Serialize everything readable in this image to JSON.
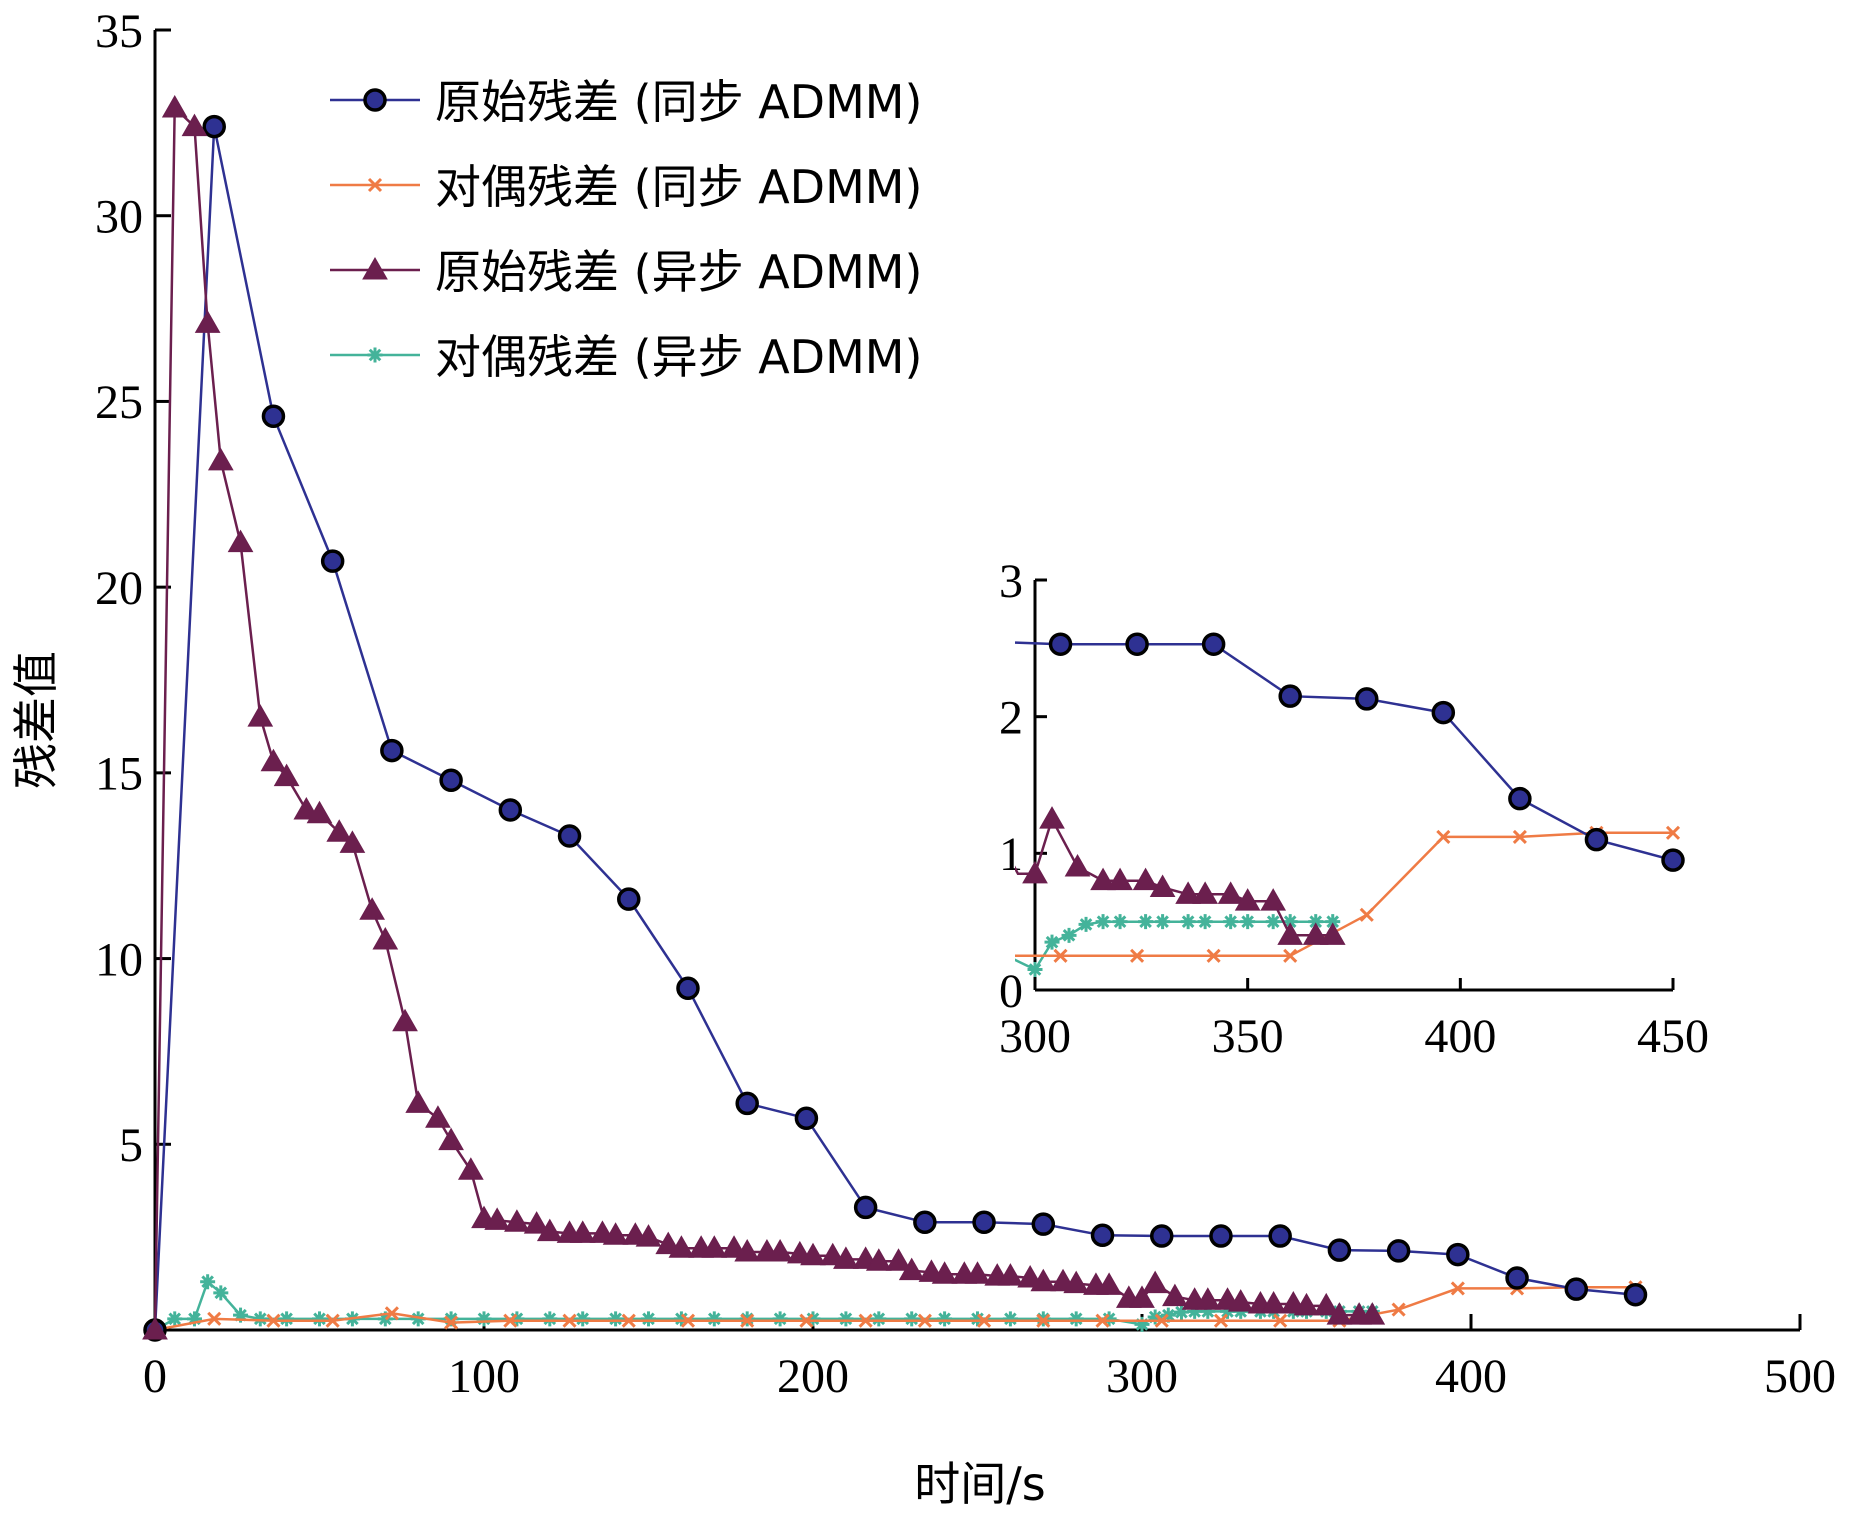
{
  "chart_data": [
    {
      "type": "line",
      "xlabel": "时间/s",
      "ylabel": "残差值",
      "xlim": [
        0,
        500
      ],
      "ylim": [
        0,
        35
      ],
      "xticks": [
        "0",
        "100",
        "200",
        "300",
        "400",
        "500"
      ],
      "yticks": [
        "5",
        "10",
        "15",
        "20",
        "25",
        "30",
        "35"
      ],
      "legend_position": "top-center",
      "series": [
        {
          "name": "原始残差 (同步 ADMM)",
          "color": "#2e3192",
          "marker": "circle",
          "x": [
            0,
            18,
            36,
            54,
            72,
            90,
            108,
            126,
            144,
            162,
            180,
            198,
            216,
            234,
            252,
            270,
            288,
            306,
            324,
            342,
            360,
            378,
            396,
            414,
            432,
            450
          ],
          "y": [
            0,
            32.4,
            24.6,
            20.7,
            15.6,
            14.8,
            14.0,
            13.3,
            11.6,
            9.2,
            6.1,
            5.7,
            3.3,
            2.9,
            2.9,
            2.85,
            2.55,
            2.53,
            2.53,
            2.53,
            2.15,
            2.13,
            2.03,
            1.4,
            1.1,
            0.95
          ]
        },
        {
          "name": "对偶残差 (同步 ADMM)",
          "color": "#ef7b45",
          "marker": "x",
          "x": [
            0,
            18,
            36,
            54,
            72,
            90,
            108,
            126,
            144,
            162,
            180,
            198,
            216,
            234,
            252,
            270,
            288,
            306,
            324,
            342,
            360,
            378,
            396,
            414,
            432,
            450
          ],
          "y": [
            0,
            0.3,
            0.25,
            0.25,
            0.45,
            0.2,
            0.25,
            0.25,
            0.25,
            0.25,
            0.25,
            0.25,
            0.25,
            0.25,
            0.25,
            0.25,
            0.25,
            0.25,
            0.25,
            0.25,
            0.25,
            0.55,
            1.12,
            1.12,
            1.15,
            1.15
          ]
        },
        {
          "name": "原始残差 (异步 ADMM)",
          "color": "#6b1f4e",
          "marker": "triangle",
          "x": [
            0,
            6,
            12,
            16,
            20,
            26,
            32,
            36,
            40,
            46,
            50,
            56,
            60,
            66,
            70,
            76,
            80,
            86,
            90,
            96,
            100,
            104,
            110,
            116,
            120,
            126,
            130,
            136,
            140,
            146,
            150,
            156,
            160,
            166,
            170,
            176,
            180,
            186,
            190,
            196,
            200,
            206,
            210,
            216,
            220,
            226,
            230,
            236,
            240,
            246,
            250,
            256,
            260,
            266,
            270,
            276,
            280,
            286,
            290,
            296,
            300,
            304,
            310,
            316,
            320,
            326,
            330,
            336,
            340,
            346,
            350,
            356,
            360,
            366,
            370
          ],
          "y": [
            0,
            32.9,
            32.4,
            27.1,
            23.4,
            21.2,
            16.5,
            15.3,
            14.9,
            14.0,
            13.9,
            13.4,
            13.1,
            11.3,
            10.5,
            8.3,
            6.1,
            5.7,
            5.1,
            4.3,
            3.0,
            2.95,
            2.9,
            2.85,
            2.65,
            2.6,
            2.6,
            2.6,
            2.55,
            2.55,
            2.5,
            2.3,
            2.2,
            2.2,
            2.2,
            2.2,
            2.1,
            2.1,
            2.1,
            2.05,
            2.0,
            2.0,
            1.9,
            1.9,
            1.85,
            1.85,
            1.6,
            1.55,
            1.5,
            1.5,
            1.5,
            1.45,
            1.45,
            1.4,
            1.3,
            1.3,
            1.25,
            1.2,
            1.2,
            0.85,
            0.85,
            1.25,
            0.9,
            0.8,
            0.8,
            0.8,
            0.75,
            0.7,
            0.7,
            0.7,
            0.65,
            0.65,
            0.4,
            0.4,
            0.4
          ]
        },
        {
          "name": "对偶残差 (异步 ADMM)",
          "color": "#44b39a",
          "marker": "star",
          "x": [
            0,
            6,
            12,
            16,
            20,
            26,
            32,
            40,
            50,
            60,
            70,
            80,
            90,
            100,
            110,
            120,
            130,
            140,
            150,
            160,
            170,
            180,
            190,
            200,
            210,
            220,
            230,
            240,
            250,
            260,
            270,
            280,
            290,
            300,
            304,
            308,
            312,
            316,
            320,
            326,
            330,
            336,
            340,
            346,
            350,
            356,
            360,
            366,
            370
          ],
          "y": [
            0,
            0.3,
            0.3,
            1.3,
            1.0,
            0.4,
            0.3,
            0.3,
            0.3,
            0.3,
            0.3,
            0.3,
            0.3,
            0.3,
            0.3,
            0.3,
            0.3,
            0.3,
            0.3,
            0.3,
            0.3,
            0.3,
            0.3,
            0.3,
            0.3,
            0.3,
            0.3,
            0.3,
            0.3,
            0.3,
            0.3,
            0.3,
            0.3,
            0.15,
            0.35,
            0.4,
            0.48,
            0.5,
            0.5,
            0.5,
            0.5,
            0.5,
            0.5,
            0.5,
            0.5,
            0.5,
            0.5,
            0.5,
            0.5
          ]
        }
      ]
    },
    {
      "type": "line",
      "inset": true,
      "xlim": [
        300,
        450
      ],
      "ylim": [
        0,
        3
      ],
      "xticks": [
        "300",
        "350",
        "400",
        "450"
      ],
      "yticks": [
        "0",
        "1",
        "2",
        "3"
      ]
    }
  ]
}
